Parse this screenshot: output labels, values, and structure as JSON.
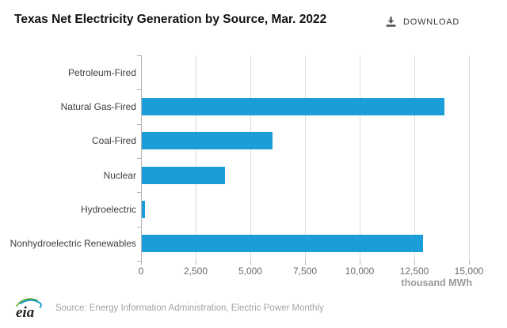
{
  "header": {
    "title": "Texas Net Electricity Generation by Source, Mar. 2022",
    "download_label": "DOWNLOAD"
  },
  "chart_data": {
    "type": "bar",
    "orientation": "horizontal",
    "title": "Texas Net Electricity Generation by Source, Mar. 2022",
    "categories": [
      "Petroleum-Fired",
      "Natural Gas-Fired",
      "Coal-Fired",
      "Nuclear",
      "Hydroelectric",
      "Nonhydroelectric Renewables"
    ],
    "values": [
      0,
      13850,
      5980,
      3790,
      140,
      12860
    ],
    "xlabel": "thousand MWh",
    "ylabel": "",
    "xlim": [
      0,
      15000
    ],
    "xticks": [
      0,
      2500,
      5000,
      7500,
      10000,
      12500,
      15000
    ],
    "xtick_labels": [
      "0",
      "2,500",
      "5,000",
      "7,500",
      "10,000",
      "12,500",
      "15,000"
    ],
    "bar_color": "#1a9dd9",
    "grid": true,
    "legend": "none"
  },
  "footer": {
    "logo_text": "eia",
    "source": "Source: Energy Information Administration, Electric Power Monthly"
  },
  "colors": {
    "bar": "#1a9dd9",
    "gridline": "#dadada",
    "axis": "#b3b3b3",
    "tick_label": "#6b6b6b",
    "category_label": "#3d3d3d",
    "unit_label": "#9a9a9a",
    "source_text": "#a3a3a3",
    "title": "#111111",
    "download": "#3a3a3a"
  }
}
